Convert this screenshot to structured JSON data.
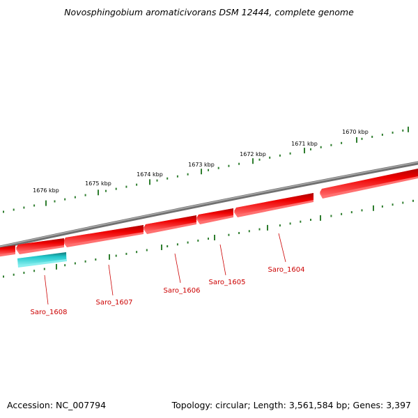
{
  "title": "Novosphingobium aromaticivorans DSM 12444, complete genome",
  "footer": {
    "accession": "Accession: NC_007794",
    "topology": "Topology: circular; Length: 3,561,584 bp; Genes: 3,397"
  },
  "colors": {
    "backbone": "#808080",
    "gene_fill": "#ee0000",
    "gene_shadow": "#ff7070",
    "rna_fill": "#22c8cc",
    "tick": "#2e7d2e",
    "label": "#cc0000"
  },
  "kbp_labels": [
    "1670 kbp",
    "1671 kbp",
    "1672 kbp",
    "1673 kbp",
    "1674 kbp",
    "1675 kbp",
    "1676 kbp"
  ],
  "gene_labels": [
    "Saro_1604",
    "Saro_1605",
    "Saro_1606",
    "Saro_1607",
    "Saro_1608"
  ]
}
